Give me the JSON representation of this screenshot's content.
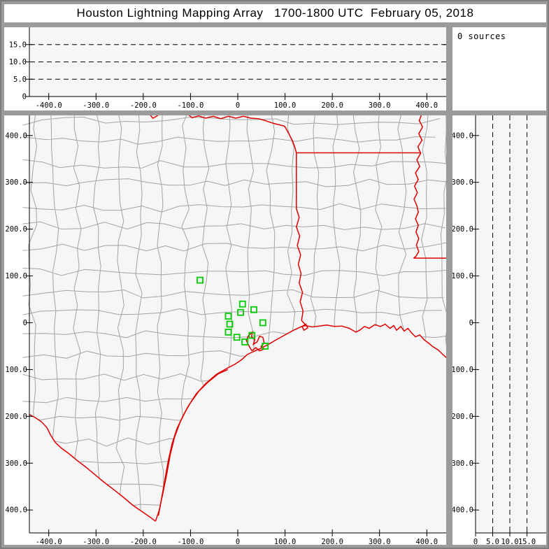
{
  "window": {
    "title": "Houston Lightning Mapping Array   1700-1800 UTC  February 05, 2018"
  },
  "sources_panel": {
    "count_label": "0 sources"
  },
  "colors": {
    "chrome": "#9b9b9b",
    "panel_bg": "#ffffff",
    "plot_bg": "#f6f6f6",
    "axis": "#000000",
    "county_line": "#a3a3a3",
    "state_border": "#dd0000",
    "station_marker": "#00cc00"
  },
  "chart_data": [
    {
      "id": "altitude-vs-eastwest",
      "type": "scatter",
      "title": "",
      "points": [],
      "x_axis": {
        "lim": [
          -441,
          441
        ],
        "ticks_km": [
          -400,
          -300,
          -200,
          -100,
          0,
          100,
          200,
          300,
          400
        ],
        "tick_labels": [
          "-400.0",
          "-300.0",
          "-200.0",
          "-100.0",
          "0",
          "100.0",
          "200.0",
          "300.0",
          "400.0"
        ]
      },
      "y_axis": {
        "lim": [
          0,
          20
        ],
        "ticks_km": [
          0,
          5,
          10,
          15
        ],
        "tick_labels": [
          "0",
          "5.0",
          "10.0",
          "15.0"
        ],
        "gridlines_km": [
          5,
          10,
          15
        ],
        "grid_style": "dashed"
      }
    },
    {
      "id": "plan-view-map",
      "type": "scatter",
      "title": "",
      "points": [],
      "x_axis": {
        "lim": [
          -441,
          441
        ],
        "ticks_km": [
          -400,
          -300,
          -200,
          -100,
          0,
          100,
          200,
          300,
          400
        ],
        "tick_labels": [
          "-400.0",
          "-300.0",
          "-200.0",
          "-100.0",
          "0",
          "100.0",
          "200.0",
          "300.0",
          "400.0"
        ]
      },
      "y_axis": {
        "lim": [
          -449,
          443
        ],
        "ticks_km": [
          400,
          300,
          200,
          100,
          0,
          -100,
          -200,
          -300,
          -400
        ],
        "tick_labels": [
          "400.0",
          "300.0",
          "200.0",
          "100.0",
          "0",
          "-100.0",
          "-200.0",
          "-300.0",
          "-400.0"
        ]
      },
      "stations_km": [
        [
          -80,
          91
        ],
        [
          10,
          40
        ],
        [
          34,
          28
        ],
        [
          6,
          22
        ],
        [
          -20,
          14
        ],
        [
          -17,
          -3
        ],
        [
          53,
          0
        ],
        [
          -20,
          -20
        ],
        [
          -2,
          -31
        ],
        [
          30,
          -27
        ],
        [
          15,
          -41
        ],
        [
          58,
          -50
        ]
      ],
      "geo": {
        "coastline": [
          [
            -174,
            -424
          ],
          [
            -166,
            -400
          ],
          [
            -158,
            -362
          ],
          [
            -150,
            -322
          ],
          [
            -143,
            -282
          ],
          [
            -134,
            -245
          ],
          [
            -122,
            -212
          ],
          [
            -106,
            -180
          ],
          [
            -88,
            -152
          ],
          [
            -68,
            -130
          ],
          [
            -45,
            -110
          ],
          [
            -22,
            -97
          ],
          [
            -5,
            -88
          ],
          [
            8,
            -79
          ],
          [
            20,
            -68
          ],
          [
            32,
            -62
          ],
          [
            48,
            -55
          ],
          [
            65,
            -46
          ],
          [
            82,
            -36
          ],
          [
            100,
            -26
          ],
          [
            118,
            -16
          ],
          [
            133,
            -9
          ],
          [
            143,
            -6
          ],
          [
            158,
            -9
          ],
          [
            172,
            -7
          ],
          [
            188,
            -5
          ],
          [
            204,
            -8
          ],
          [
            220,
            -7
          ],
          [
            236,
            -12
          ],
          [
            250,
            -20
          ],
          [
            258,
            -16
          ],
          [
            268,
            -8
          ],
          [
            278,
            -12
          ],
          [
            290,
            -4
          ],
          [
            302,
            -8
          ],
          [
            312,
            -3
          ],
          [
            322,
            -12
          ],
          [
            330,
            -6
          ],
          [
            336,
            -16
          ],
          [
            345,
            -8
          ],
          [
            352,
            -18
          ],
          [
            360,
            -12
          ],
          [
            368,
            -22
          ],
          [
            376,
            -30
          ],
          [
            385,
            -26
          ],
          [
            394,
            -36
          ],
          [
            404,
            -44
          ],
          [
            414,
            -52
          ],
          [
            424,
            -58
          ],
          [
            434,
            -68
          ],
          [
            443,
            -76
          ]
        ],
        "barrier_island": [
          [
            -168,
            -412
          ],
          [
            -161,
            -374
          ],
          [
            -154,
            -334
          ],
          [
            -147,
            -294
          ],
          [
            -139,
            -258
          ],
          [
            -129,
            -227
          ],
          [
            -115,
            -197
          ],
          [
            -100,
            -171
          ],
          [
            -83,
            -147
          ],
          [
            -63,
            -127
          ],
          [
            -41,
            -109
          ],
          [
            -21,
            -100
          ]
        ],
        "galveston_bay": [
          [
            30,
            -60
          ],
          [
            24,
            -50
          ],
          [
            18,
            -38
          ],
          [
            23,
            -27
          ],
          [
            31,
            -20
          ],
          [
            29,
            -30
          ],
          [
            36,
            -36
          ],
          [
            33,
            -46
          ],
          [
            41,
            -41
          ],
          [
            46,
            -29
          ],
          [
            53,
            -31
          ],
          [
            56,
            -43
          ],
          [
            49,
            -51
          ],
          [
            56,
            -56
          ],
          [
            46,
            -60
          ],
          [
            38,
            -53
          ],
          [
            30,
            -60
          ]
        ],
        "sabine_lake": [
          [
            136,
            -8
          ],
          [
            140,
            -16
          ],
          [
            148,
            -11
          ],
          [
            144,
            -3
          ],
          [
            136,
            -8
          ]
        ],
        "rio_grande": [
          [
            -441,
            -196
          ],
          [
            -428,
            -203
          ],
          [
            -415,
            -212
          ],
          [
            -404,
            -224
          ],
          [
            -396,
            -240
          ],
          [
            -386,
            -256
          ],
          [
            -373,
            -268
          ],
          [
            -357,
            -280
          ],
          [
            -340,
            -294
          ],
          [
            -322,
            -308
          ],
          [
            -303,
            -324
          ],
          [
            -284,
            -340
          ],
          [
            -263,
            -356
          ],
          [
            -243,
            -372
          ],
          [
            -222,
            -390
          ],
          [
            -202,
            -404
          ],
          [
            -186,
            -415
          ],
          [
            -174,
            -424
          ]
        ],
        "red_river_west": [
          [
            -188,
            448
          ],
          [
            -180,
            437
          ],
          [
            -172,
            441
          ],
          [
            -164,
            448
          ]
        ],
        "red_river": [
          [
            -108,
            448
          ],
          [
            -97,
            438
          ],
          [
            -83,
            442
          ],
          [
            -68,
            437
          ],
          [
            -52,
            441
          ],
          [
            -36,
            436
          ],
          [
            -20,
            441
          ],
          [
            -4,
            437
          ],
          [
            12,
            441
          ],
          [
            28,
            437
          ],
          [
            44,
            436
          ],
          [
            58,
            432
          ],
          [
            72,
            427
          ],
          [
            87,
            423
          ],
          [
            99,
            420
          ],
          [
            108,
            404
          ],
          [
            116,
            388
          ],
          [
            121,
            374
          ],
          [
            124,
            363
          ]
        ],
        "ar_la_border": [
          [
            124,
            363
          ],
          [
            388,
            363
          ]
        ],
        "tx_la_border": [
          [
            124,
            363
          ],
          [
            124,
            244
          ],
          [
            130,
            225
          ],
          [
            124,
            205
          ],
          [
            131,
            185
          ],
          [
            126,
            165
          ],
          [
            133,
            145
          ],
          [
            128,
            125
          ],
          [
            134,
            105
          ],
          [
            130,
            85
          ],
          [
            137,
            65
          ],
          [
            132,
            45
          ],
          [
            138,
            25
          ],
          [
            135,
            5
          ],
          [
            141,
            -2
          ],
          [
            143,
            -6
          ]
        ],
        "mississippi_river": [
          [
            390,
            448
          ],
          [
            384,
            432
          ],
          [
            391,
            418
          ],
          [
            383,
            404
          ],
          [
            390,
            390
          ],
          [
            381,
            376
          ],
          [
            387,
            362
          ],
          [
            379,
            348
          ],
          [
            385,
            334
          ],
          [
            376,
            320
          ],
          [
            382,
            306
          ],
          [
            374,
            292
          ],
          [
            380,
            278
          ],
          [
            373,
            264
          ],
          [
            379,
            250
          ],
          [
            382,
            236
          ],
          [
            376,
            222
          ],
          [
            382,
            208
          ],
          [
            377,
            194
          ],
          [
            383,
            180
          ],
          [
            378,
            166
          ],
          [
            383,
            152
          ],
          [
            377,
            142
          ],
          [
            372,
            138
          ]
        ],
        "la_ms_border": [
          [
            372,
            138
          ],
          [
            443,
            138
          ]
        ],
        "county_mesh": {
          "seed": 20180205,
          "step_km": 46,
          "jitter_km": 9
        }
      }
    },
    {
      "id": "northsouth-vs-altitude",
      "type": "scatter",
      "title": "",
      "points": [],
      "x_axis": {
        "lim": [
          0,
          21
        ],
        "ticks_km": [
          0,
          5,
          10,
          15
        ],
        "tick_labels": [
          "0",
          "5.0",
          "10.0",
          "15.0"
        ],
        "gridlines_km": [
          5,
          10,
          15
        ],
        "grid_style": "dashed"
      },
      "y_axis": {
        "lim": [
          -449,
          443
        ],
        "ticks_km": [
          400,
          300,
          200,
          100,
          0,
          -100,
          -200,
          -300,
          -400
        ],
        "tick_labels": [
          "400.0",
          "300.0",
          "200.0",
          "100.0",
          "0",
          "-100.0",
          "-200.0",
          "-300.0",
          "-400.0"
        ]
      }
    }
  ]
}
